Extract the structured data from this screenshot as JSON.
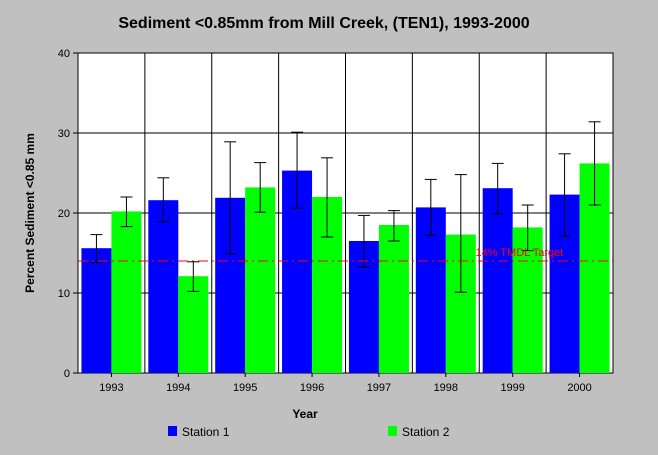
{
  "chart_data": {
    "type": "bar",
    "title": "Sediment <0.85mm from Mill Creek, (TEN1), 1993-2000",
    "xlabel": "Year",
    "ylabel": "Percent Sediment <0.85 mm",
    "ylim": [
      0,
      40
    ],
    "yticks": [
      "0",
      "10",
      "20",
      "30",
      "40"
    ],
    "grid": true,
    "legend_position": "bottom",
    "categories": [
      "1993",
      "1994",
      "1995",
      "1996",
      "1997",
      "1998",
      "1999",
      "2000"
    ],
    "series": [
      {
        "name": "Station 1",
        "color": "#0000ff",
        "values": [
          15.6,
          21.6,
          21.9,
          25.3,
          16.5,
          20.7,
          23.1,
          22.3
        ],
        "error_low": [
          13.8,
          18.9,
          14.9,
          20.6,
          13.2,
          17.2,
          19.9,
          17.1
        ],
        "error_high": [
          17.3,
          24.4,
          28.9,
          30.1,
          19.7,
          24.2,
          26.2,
          27.4
        ]
      },
      {
        "name": "Station 2",
        "color": "#00ff00",
        "values": [
          20.2,
          12.1,
          23.2,
          22.0,
          18.5,
          17.3,
          18.2,
          26.2
        ],
        "error_low": [
          18.3,
          10.2,
          20.1,
          17.0,
          16.5,
          10.1,
          15.3,
          21.0
        ],
        "error_high": [
          22.0,
          13.9,
          26.3,
          26.9,
          20.3,
          24.8,
          21.0,
          31.4
        ]
      }
    ],
    "target_line": {
      "label": "14% TMDL Target",
      "value": 14,
      "color": "#ff0000"
    }
  }
}
